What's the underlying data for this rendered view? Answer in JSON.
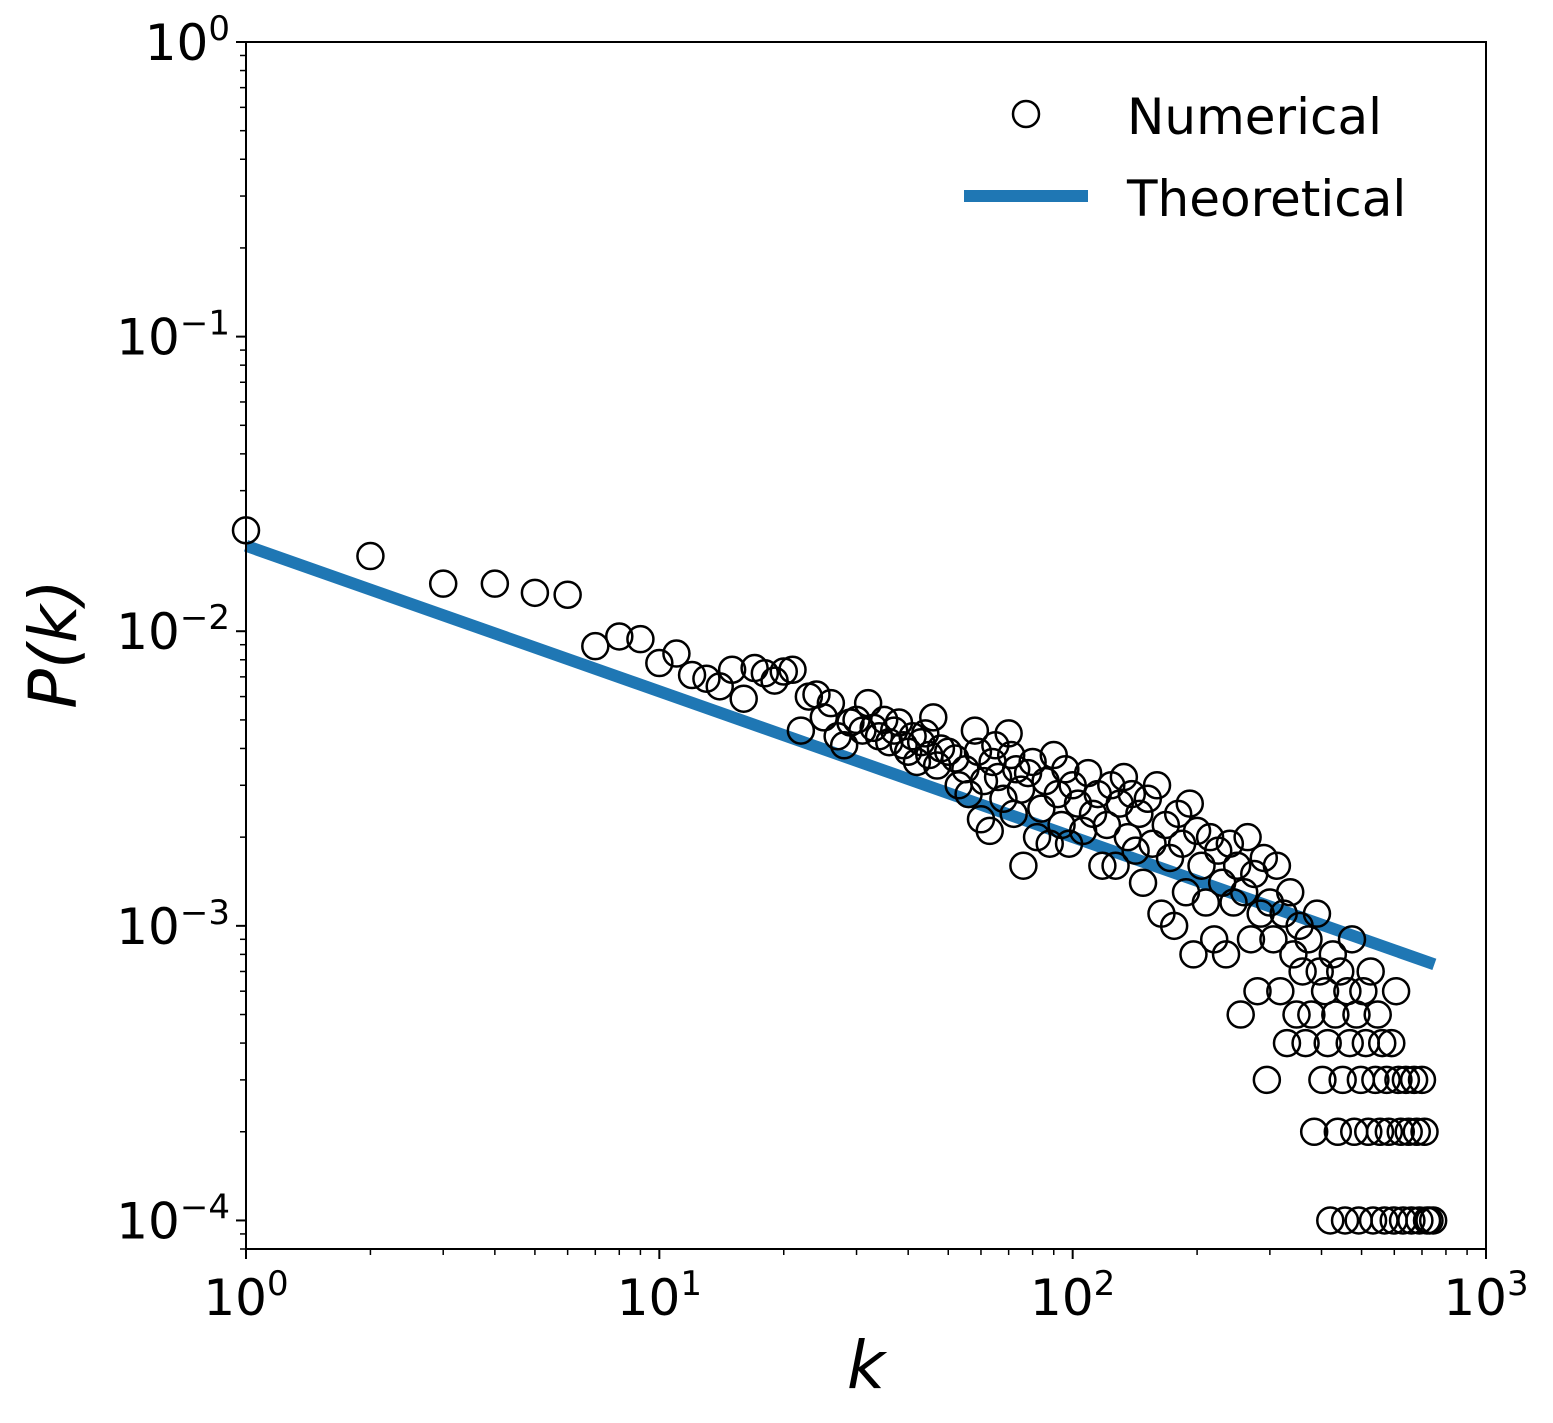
{
  "chart_data": {
    "type": "scatter",
    "title": "",
    "xlabel": "k",
    "ylabel": "P(k)",
    "xscale": "log",
    "yscale": "log",
    "xlim": [
      1,
      1000
    ],
    "ylim": [
      8e-05,
      1
    ],
    "x_ticks": [
      {
        "value": 1,
        "base": "10",
        "exp": "0"
      },
      {
        "value": 10,
        "base": "10",
        "exp": "1"
      },
      {
        "value": 100,
        "base": "10",
        "exp": "2"
      },
      {
        "value": 1000,
        "base": "10",
        "exp": "3"
      }
    ],
    "y_ticks": [
      {
        "value": 1,
        "base": "10",
        "exp": "0"
      },
      {
        "value": 0.1,
        "base": "10",
        "exp": "−1"
      },
      {
        "value": 0.01,
        "base": "10",
        "exp": "−2"
      },
      {
        "value": 0.001,
        "base": "10",
        "exp": "−3"
      },
      {
        "value": 0.0001,
        "base": "10",
        "exp": "−4"
      }
    ],
    "grid": false,
    "legend_position": "top-right",
    "colors": {
      "numerical": "#000000",
      "theoretical": "#1f77b4"
    },
    "series": [
      {
        "name": "Numerical",
        "type": "scatter",
        "marker": "open-circle",
        "points": [
          [
            1,
            0.022
          ],
          [
            2,
            0.018
          ],
          [
            3,
            0.0145
          ],
          [
            4,
            0.0145
          ],
          [
            5,
            0.0135
          ],
          [
            6,
            0.0133
          ],
          [
            7,
            0.0089
          ],
          [
            8,
            0.0096
          ],
          [
            9,
            0.0094
          ],
          [
            10,
            0.0078
          ],
          [
            11,
            0.0084
          ],
          [
            12,
            0.0071
          ],
          [
            13,
            0.0069
          ],
          [
            14,
            0.0065
          ],
          [
            15,
            0.0074
          ],
          [
            16,
            0.0059
          ],
          [
            17,
            0.0075
          ],
          [
            18,
            0.0072
          ],
          [
            19,
            0.0068
          ],
          [
            20,
            0.0073
          ],
          [
            21,
            0.0074
          ],
          [
            22,
            0.0046
          ],
          [
            23,
            0.006
          ],
          [
            24,
            0.0061
          ],
          [
            25,
            0.0051
          ],
          [
            26,
            0.0057
          ],
          [
            27,
            0.0044
          ],
          [
            28,
            0.0041
          ],
          [
            29,
            0.0049
          ],
          [
            30,
            0.005
          ],
          [
            31,
            0.0046
          ],
          [
            32,
            0.0057
          ],
          [
            33,
            0.0047
          ],
          [
            34,
            0.0044
          ],
          [
            35,
            0.005
          ],
          [
            36,
            0.0042
          ],
          [
            37,
            0.0046
          ],
          [
            38,
            0.0049
          ],
          [
            39,
            0.0041
          ],
          [
            40,
            0.0039
          ],
          [
            41,
            0.0044
          ],
          [
            42,
            0.0036
          ],
          [
            43,
            0.0042
          ],
          [
            44,
            0.0045
          ],
          [
            45,
            0.0038
          ],
          [
            46,
            0.0051
          ],
          [
            47,
            0.0035
          ],
          [
            48,
            0.004
          ],
          [
            50,
            0.0039
          ],
          [
            52,
            0.0037
          ],
          [
            53,
            0.003
          ],
          [
            55,
            0.0034
          ],
          [
            56,
            0.0028
          ],
          [
            58,
            0.0046
          ],
          [
            59,
            0.0039
          ],
          [
            60,
            0.0023
          ],
          [
            61,
            0.0031
          ],
          [
            63,
            0.0021
          ],
          [
            64,
            0.0036
          ],
          [
            65,
            0.0041
          ],
          [
            66,
            0.0032
          ],
          [
            68,
            0.0027
          ],
          [
            70,
            0.0045
          ],
          [
            71,
            0.0038
          ],
          [
            72,
            0.0024
          ],
          [
            73,
            0.0034
          ],
          [
            75,
            0.0029
          ],
          [
            76,
            0.0016
          ],
          [
            78,
            0.0033
          ],
          [
            80,
            0.0036
          ],
          [
            82,
            0.002
          ],
          [
            84,
            0.0025
          ],
          [
            86,
            0.0031
          ],
          [
            88,
            0.0019
          ],
          [
            90,
            0.0038
          ],
          [
            92,
            0.0028
          ],
          [
            94,
            0.0022
          ],
          [
            96,
            0.0034
          ],
          [
            98,
            0.0019
          ],
          [
            100,
            0.003
          ],
          [
            103,
            0.0026
          ],
          [
            106,
            0.0021
          ],
          [
            109,
            0.0033
          ],
          [
            112,
            0.0024
          ],
          [
            115,
            0.0028
          ],
          [
            118,
            0.0016
          ],
          [
            121,
            0.0022
          ],
          [
            124,
            0.003
          ],
          [
            127,
            0.0016
          ],
          [
            130,
            0.0026
          ],
          [
            133,
            0.0032
          ],
          [
            136,
            0.002
          ],
          [
            139,
            0.0028
          ],
          [
            142,
            0.0018
          ],
          [
            145,
            0.0024
          ],
          [
            148,
            0.0014
          ],
          [
            152,
            0.0027
          ],
          [
            156,
            0.0019
          ],
          [
            160,
            0.003
          ],
          [
            164,
            0.0011
          ],
          [
            168,
            0.0022
          ],
          [
            172,
            0.0017
          ],
          [
            176,
            0.001
          ],
          [
            180,
            0.0024
          ],
          [
            184,
            0.0019
          ],
          [
            188,
            0.0013
          ],
          [
            192,
            0.0026
          ],
          [
            196,
            0.0008
          ],
          [
            200,
            0.0021
          ],
          [
            205,
            0.0016
          ],
          [
            210,
            0.0012
          ],
          [
            215,
            0.002
          ],
          [
            220,
            0.0009
          ],
          [
            225,
            0.0018
          ],
          [
            230,
            0.0014
          ],
          [
            235,
            0.0008
          ],
          [
            240,
            0.0019
          ],
          [
            245,
            0.0012
          ],
          [
            250,
            0.0016
          ],
          [
            255,
            0.0005
          ],
          [
            260,
            0.0013
          ],
          [
            265,
            0.002
          ],
          [
            270,
            0.0009
          ],
          [
            275,
            0.0015
          ],
          [
            280,
            0.0006
          ],
          [
            285,
            0.0011
          ],
          [
            290,
            0.0017
          ],
          [
            295,
            0.0003
          ],
          [
            300,
            0.0012
          ],
          [
            306,
            0.0009
          ],
          [
            312,
            0.0016
          ],
          [
            318,
            0.0006
          ],
          [
            324,
            0.0011
          ],
          [
            330,
            0.0004
          ],
          [
            336,
            0.0013
          ],
          [
            342,
            0.0008
          ],
          [
            348,
            0.0005
          ],
          [
            354,
            0.001
          ],
          [
            360,
            0.0007
          ],
          [
            366,
            0.0004
          ],
          [
            372,
            0.0009
          ],
          [
            378,
            0.0005
          ],
          [
            384,
            0.0002
          ],
          [
            390,
            0.0011
          ],
          [
            396,
            0.0007
          ],
          [
            402,
            0.0003
          ],
          [
            408,
            0.0006
          ],
          [
            414,
            0.0004
          ],
          [
            420,
            0.0001
          ],
          [
            426,
            0.0008
          ],
          [
            432,
            0.0005
          ],
          [
            438,
            0.0002
          ],
          [
            444,
            0.0007
          ],
          [
            450,
            0.0003
          ],
          [
            456,
            0.0001
          ],
          [
            462,
            0.0006
          ],
          [
            468,
            0.0004
          ],
          [
            474,
            0.0009
          ],
          [
            480,
            0.0002
          ],
          [
            486,
            0.0005
          ],
          [
            492,
            0.0001
          ],
          [
            498,
            0.0003
          ],
          [
            505,
            0.0006
          ],
          [
            512,
            0.0004
          ],
          [
            519,
            0.0002
          ],
          [
            526,
            0.0007
          ],
          [
            533,
            0.0001
          ],
          [
            540,
            0.0003
          ],
          [
            547,
            0.0005
          ],
          [
            554,
            0.0002
          ],
          [
            561,
            0.0004
          ],
          [
            568,
            0.0001
          ],
          [
            575,
            0.0003
          ],
          [
            582,
            0.0002
          ],
          [
            590,
            0.0004
          ],
          [
            598,
            0.0001
          ],
          [
            606,
            0.0006
          ],
          [
            614,
            0.0003
          ],
          [
            622,
            0.0002
          ],
          [
            630,
            0.0001
          ],
          [
            640,
            0.0003
          ],
          [
            650,
            0.0002
          ],
          [
            660,
            0.0001
          ],
          [
            670,
            0.0003
          ],
          [
            680,
            0.0002
          ],
          [
            690,
            0.0001
          ],
          [
            700,
            0.0003
          ],
          [
            710,
            0.0002
          ],
          [
            720,
            0.0001
          ],
          [
            730,
            0.0001
          ],
          [
            745,
            0.0001
          ]
        ]
      },
      {
        "name": "Theoretical",
        "type": "line",
        "points": [
          [
            1,
            0.0195
          ],
          [
            750,
            0.00074
          ]
        ]
      }
    ]
  }
}
